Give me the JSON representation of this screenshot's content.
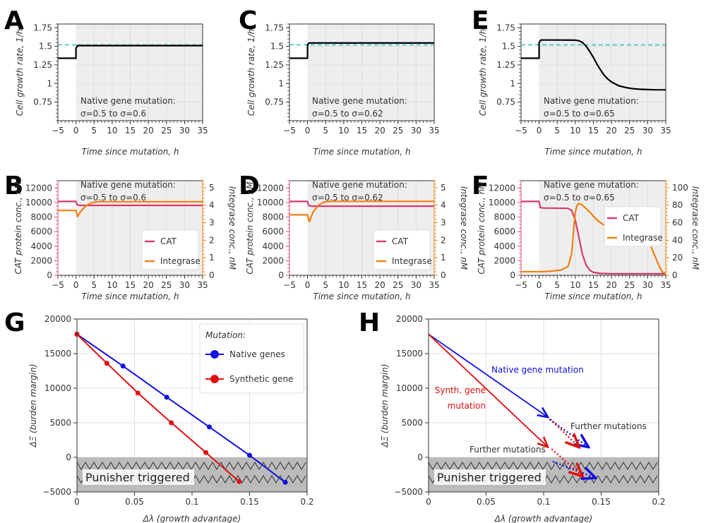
{
  "colors": {
    "growth": "#000000",
    "reference": "#2ec4c4",
    "cat": "#d63a6e",
    "integrase": "#f07f10",
    "native": "#1010e0",
    "synthetic": "#e01010",
    "shade": "#eeeeee",
    "punisher": "#bbbbbb",
    "leftSpine": "#e0447a",
    "rightSpine": "#f07f10"
  },
  "chart_data": [
    {
      "panel": "A",
      "type": "line",
      "xlabel": "Time since mutation, h",
      "ylabel": "Cell growth rate, 1/h",
      "xlim": [
        -5,
        35
      ],
      "ylim": [
        0.5,
        1.8
      ],
      "xticks": [
        "−5",
        "0",
        "5",
        "10",
        "15",
        "20",
        "25",
        "30",
        "35"
      ],
      "yticks": [
        "0.75",
        "1",
        "1.25",
        "1.5",
        "1.75"
      ],
      "reference_rate": 1.52,
      "annotation": [
        "Native gene mutation:",
        "σ=0.5 to σ=0.6"
      ],
      "series": [
        {
          "name": "growth rate",
          "x": [
            -5,
            0,
            0,
            0.4,
            35
          ],
          "y": [
            1.34,
            1.34,
            1.47,
            1.51,
            1.51
          ]
        }
      ]
    },
    {
      "panel": "C",
      "type": "line",
      "xlabel": "Time since mutation, h",
      "ylabel": "Cell growth rate, 1/h",
      "xlim": [
        -5,
        35
      ],
      "ylim": [
        0.5,
        1.8
      ],
      "xticks": [
        "−5",
        "0",
        "5",
        "10",
        "15",
        "20",
        "25",
        "30",
        "35"
      ],
      "yticks": [
        "0.75",
        "1",
        "1.25",
        "1.5",
        "1.75"
      ],
      "reference_rate": 1.52,
      "annotation": [
        "Native gene mutation:",
        "σ=0.5 to σ=0.62"
      ],
      "series": [
        {
          "name": "growth rate",
          "x": [
            -5,
            0,
            0,
            0.4,
            35
          ],
          "y": [
            1.34,
            1.34,
            1.52,
            1.545,
            1.545
          ]
        }
      ]
    },
    {
      "panel": "E",
      "type": "line",
      "xlabel": "Time since mutation, h",
      "ylabel": "Cell growth rate, 1/h",
      "xlim": [
        -5,
        35
      ],
      "ylim": [
        0.5,
        1.8
      ],
      "xticks": [
        "−5",
        "0",
        "5",
        "10",
        "15",
        "20",
        "25",
        "30",
        "35"
      ],
      "yticks": [
        "0.75",
        "1",
        "1.25",
        "1.5",
        "1.75"
      ],
      "reference_rate": 1.52,
      "annotation": [
        "Native gene mutation:",
        "σ=0.5 to σ=0.65"
      ],
      "series": [
        {
          "name": "growth rate",
          "x": [
            -5,
            0,
            0,
            0.5,
            5,
            10,
            11,
            12,
            13,
            14,
            15,
            16,
            17,
            18,
            19,
            20,
            22,
            24,
            26,
            28,
            30,
            32,
            35
          ],
          "y": [
            1.34,
            1.34,
            1.55,
            1.585,
            1.585,
            1.583,
            1.575,
            1.55,
            1.5,
            1.43,
            1.35,
            1.26,
            1.18,
            1.11,
            1.06,
            1.02,
            0.97,
            0.945,
            0.93,
            0.922,
            0.918,
            0.916,
            0.915
          ]
        }
      ]
    },
    {
      "panel": "B",
      "type": "line",
      "xlabel": "Time since mutation, h",
      "ylabel": "CAT protein conc., nM",
      "ylabel_right": "Integrase conc., nM",
      "xlim": [
        -5,
        35
      ],
      "ylim": [
        0,
        13000
      ],
      "ylim_right": [
        0,
        5.4
      ],
      "xticks": [
        "−5",
        "0",
        "5",
        "10",
        "15",
        "20",
        "25",
        "30",
        "35"
      ],
      "yticks": [
        "0",
        "2000",
        "4000",
        "6000",
        "8000",
        "10000",
        "12000"
      ],
      "yticks_right": [
        "0",
        "1",
        "2",
        "3",
        "4",
        "5"
      ],
      "legend": [
        "CAT",
        "Integrase"
      ],
      "annotation": [
        "Native gene mutation:",
        "σ=0.5 to σ=0.6"
      ],
      "series": [
        {
          "name": "CAT",
          "axis": "left",
          "x": [
            -5,
            0,
            0.3,
            1,
            35
          ],
          "y": [
            10150,
            10150,
            9700,
            9600,
            9600
          ]
        },
        {
          "name": "Integrase",
          "axis": "right",
          "x": [
            -5,
            0,
            0.4,
            1.5,
            3,
            4.5,
            6,
            35
          ],
          "y": [
            3.7,
            3.7,
            3.35,
            3.7,
            4.0,
            4.15,
            4.2,
            4.2
          ]
        }
      ]
    },
    {
      "panel": "D",
      "type": "line",
      "xlabel": "Time since mutation, h",
      "ylabel": "CAT protein conc., nM",
      "ylabel_right": "Integrase conc., nM",
      "xlim": [
        -5,
        35
      ],
      "ylim": [
        0,
        13000
      ],
      "ylim_right": [
        0,
        5.4
      ],
      "xticks": [
        "−5",
        "0",
        "5",
        "10",
        "15",
        "20",
        "25",
        "30",
        "35"
      ],
      "yticks": [
        "0",
        "2000",
        "4000",
        "6000",
        "8000",
        "10000",
        "12000"
      ],
      "yticks_right": [
        "0",
        "1",
        "2",
        "3",
        "4",
        "5"
      ],
      "legend": [
        "CAT",
        "Integrase"
      ],
      "annotation": [
        "Native gene mutation:",
        "σ=0.5 to σ=0.62"
      ],
      "series": [
        {
          "name": "CAT",
          "axis": "left",
          "x": [
            -5,
            0,
            0.3,
            1,
            35
          ],
          "y": [
            10150,
            10150,
            9600,
            9500,
            9500
          ]
        },
        {
          "name": "Integrase",
          "axis": "right",
          "x": [
            -5,
            0,
            0.5,
            1.5,
            3,
            4.5,
            6,
            35
          ],
          "y": [
            3.45,
            3.45,
            3.05,
            3.6,
            4.0,
            4.18,
            4.22,
            4.22
          ]
        }
      ]
    },
    {
      "panel": "F",
      "type": "line",
      "xlabel": "Time since mutation, h",
      "ylabel": "CAT protein conc., nM",
      "ylabel_right": "Integrase conc., nM",
      "xlim": [
        -5,
        35
      ],
      "ylim": [
        0,
        13000
      ],
      "ylim_right": [
        0,
        108
      ],
      "xticks": [
        "−5",
        "0",
        "5",
        "10",
        "15",
        "20",
        "25",
        "30",
        "35"
      ],
      "yticks": [
        "0",
        "2000",
        "4000",
        "6000",
        "8000",
        "10000",
        "12000"
      ],
      "yticks_right": [
        "0",
        "20",
        "40",
        "60",
        "80",
        "100"
      ],
      "legend": [
        "CAT",
        "Integrase"
      ],
      "annotation": [
        "Native gene mutation:",
        "σ=0.5 to σ=0.65"
      ],
      "series": [
        {
          "name": "CAT",
          "axis": "left",
          "x": [
            -5,
            0,
            0.3,
            1,
            8,
            9,
            10,
            11,
            12,
            13,
            14,
            15,
            17,
            20,
            35
          ],
          "y": [
            10150,
            10150,
            9300,
            9250,
            9200,
            8900,
            7600,
            5200,
            2800,
            1400,
            700,
            400,
            250,
            200,
            200
          ]
        },
        {
          "name": "Integrase",
          "axis": "right",
          "x": [
            -5,
            0,
            3,
            6,
            8,
            9,
            9.5,
            10,
            10.5,
            11,
            12,
            14,
            16,
            18,
            20,
            22,
            25,
            28,
            30,
            31,
            32,
            33,
            34,
            35
          ],
          "y": [
            4,
            4,
            4.5,
            6,
            10,
            25,
            50,
            72,
            80,
            82,
            80,
            72,
            63,
            57,
            54,
            52,
            49,
            44,
            38,
            32,
            22,
            12,
            4,
            2
          ]
        }
      ]
    },
    {
      "panel": "G",
      "type": "line",
      "xlabel": "Δλ (growth advantage)",
      "ylabel": "ΔΞ (burden margin)",
      "xlim": [
        0,
        0.2
      ],
      "ylim": [
        -5000,
        20000
      ],
      "xticks": [
        "0",
        "0.05",
        "0.1",
        "0.15",
        "0.2"
      ],
      "yticks": [
        "−5000",
        "0",
        "5000",
        "10000",
        "15000",
        "20000"
      ],
      "punisher_label": "Punisher triggered",
      "legend_title": "Mutation:",
      "legend": [
        "Native genes",
        "Synthetic gene"
      ],
      "series": [
        {
          "name": "Native genes",
          "x": [
            0,
            0.04,
            0.078,
            0.115,
            0.15,
            0.181
          ],
          "y": [
            17800,
            13200,
            8700,
            4400,
            300,
            -3600
          ]
        },
        {
          "name": "Synthetic gene",
          "x": [
            0,
            0.026,
            0.053,
            0.082,
            0.112,
            0.141
          ],
          "y": [
            17800,
            13600,
            9300,
            5000,
            700,
            -3500
          ]
        }
      ]
    },
    {
      "panel": "H",
      "type": "line",
      "xlabel": "Δλ (growth advantage)",
      "ylabel": "ΔΞ (burden margin)",
      "xlim": [
        0,
        0.2
      ],
      "ylim": [
        -5000,
        20000
      ],
      "xticks": [
        "0",
        "0.05",
        "0.1",
        "0.15",
        "0.2"
      ],
      "yticks": [
        "−5000",
        "0",
        "5000",
        "10000",
        "15000",
        "20000"
      ],
      "punisher_label": "Punisher triggered",
      "labels": {
        "native": "Native gene mutation",
        "synthetic": [
          "Synth. gene",
          "mutation"
        ],
        "further_upper": "Further mutations",
        "further_lower": "Further mutations"
      },
      "arrows": [
        {
          "name": "Native gene mutation",
          "x": [
            0,
            0.103
          ],
          "y": [
            17800,
            5900
          ]
        },
        {
          "name": "Synthetic gene mutation",
          "x": [
            0,
            0.103
          ],
          "y": [
            17800,
            1600
          ]
        },
        {
          "name": "Further native (upper)",
          "style": "dotted",
          "x": [
            0.105,
            0.138
          ],
          "y": [
            5500,
            1600
          ]
        },
        {
          "name": "Further native (lower)",
          "style": "dotted",
          "x": [
            0.108,
            0.144
          ],
          "y": [
            -600,
            -2900
          ]
        },
        {
          "name": "Further synthetic (upper)",
          "style": "dotted",
          "x": [
            0.106,
            0.13
          ],
          "y": [
            5500,
            1600
          ]
        },
        {
          "name": "Further synthetic (lower)",
          "style": "dotted",
          "x": [
            0.107,
            0.133
          ],
          "y": [
            1200,
            -2600
          ]
        }
      ]
    }
  ]
}
